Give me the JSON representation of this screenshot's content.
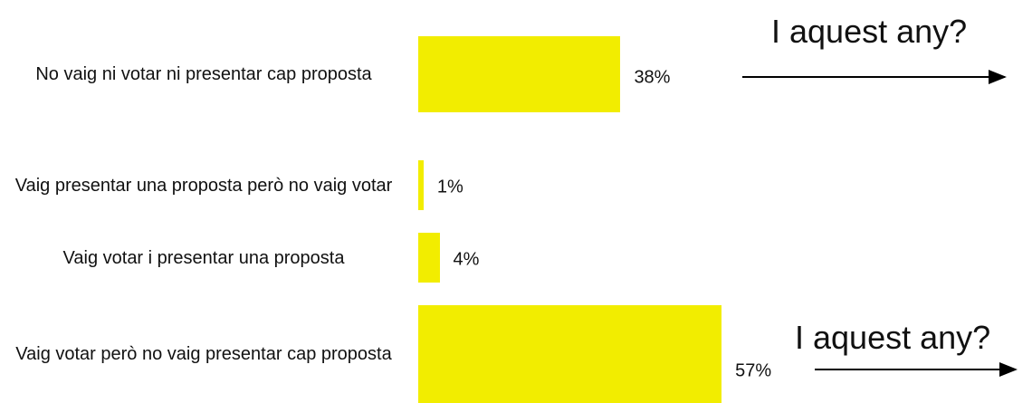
{
  "chart_data": {
    "type": "bar",
    "orientation": "horizontal",
    "categories": [
      "No vaig ni votar ni presentar cap proposta",
      "Vaig presentar una proposta però no vaig votar",
      "Vaig votar i presentar una proposta",
      "Vaig votar però no vaig presentar cap proposta"
    ],
    "values": [
      38,
      1,
      4,
      57
    ],
    "value_labels": [
      "38%",
      "1%",
      "4%",
      "57%"
    ],
    "color": "#f2ed00",
    "annotations": [
      "I aquest any?",
      "I aquest any?"
    ]
  }
}
